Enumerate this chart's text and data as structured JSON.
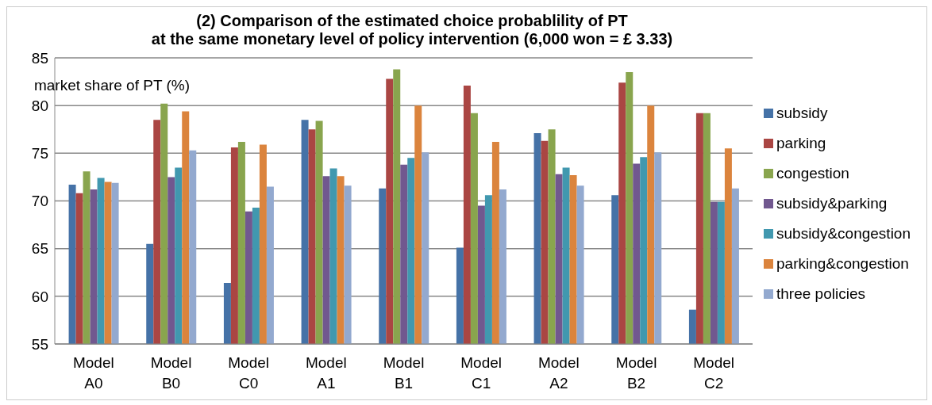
{
  "chart_data": {
    "type": "bar",
    "title": "(2) Comparison of the estimated choice probablility of PT\nat the same monetary level of policy intervention  (6,000 won = £ 3.33)",
    "ylabel": "market share of PT (%)",
    "categories": [
      "Model A0",
      "Model B0",
      "Model C0",
      "Model A1",
      "Model B1",
      "Model C1",
      "Model A2",
      "Model B2",
      "Model C2"
    ],
    "series": [
      {
        "name": "subsidy",
        "color": "#4572a7",
        "values": [
          71.7,
          65.5,
          61.4,
          78.5,
          71.3,
          65.1,
          77.1,
          70.6,
          58.6
        ]
      },
      {
        "name": "parking",
        "color": "#aa4643",
        "values": [
          70.8,
          78.5,
          75.6,
          77.5,
          82.8,
          82.1,
          76.3,
          82.4,
          79.2
        ]
      },
      {
        "name": "congestion",
        "color": "#89a54e",
        "values": [
          73.1,
          80.2,
          76.2,
          78.4,
          83.8,
          79.2,
          77.5,
          83.5,
          79.2
        ]
      },
      {
        "name": "subsidy&parking",
        "color": "#71588f",
        "values": [
          71.2,
          72.5,
          68.9,
          72.6,
          73.8,
          69.5,
          72.8,
          73.9,
          69.9
        ]
      },
      {
        "name": "subsidy&congestion",
        "color": "#4198af",
        "values": [
          72.4,
          73.5,
          69.3,
          73.4,
          74.5,
          70.6,
          73.5,
          74.6,
          69.9
        ]
      },
      {
        "name": "parking&congestion",
        "color": "#db843d",
        "values": [
          72.0,
          79.4,
          75.9,
          72.6,
          80.0,
          76.2,
          72.7,
          80.0,
          75.5
        ]
      },
      {
        "name": "three policies",
        "color": "#93a9cf",
        "values": [
          71.9,
          75.3,
          71.5,
          71.6,
          75.1,
          71.2,
          71.6,
          75.1,
          71.3
        ]
      }
    ],
    "ylim": [
      55,
      85
    ],
    "yticks": [
      55,
      60,
      65,
      70,
      75,
      80,
      85
    ],
    "grid": "y",
    "legend": "right"
  }
}
